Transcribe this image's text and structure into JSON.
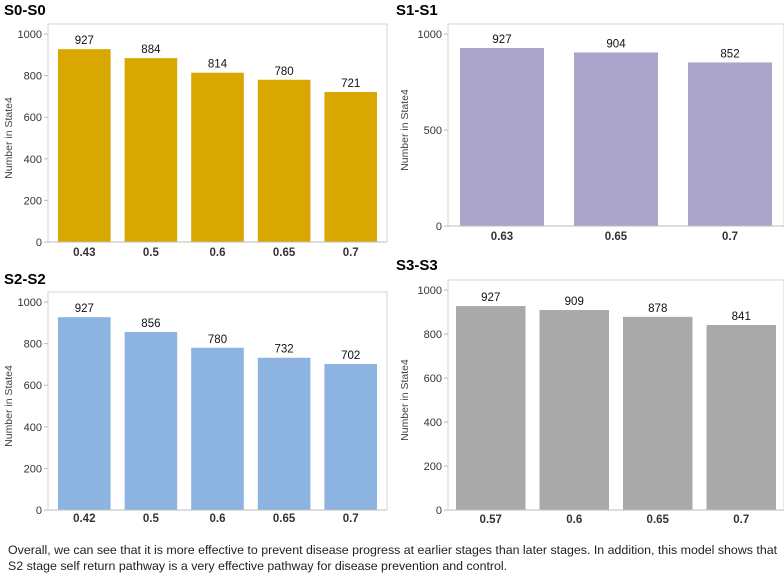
{
  "page": {
    "caption": "Overall, we can see that it is more effective to prevent disease progress at earlier stages than later stages. In addition, this model shows that S2 stage self return pathway is a very effective pathway for disease prevention and control."
  },
  "chart_data": [
    {
      "type": "bar",
      "title": "S0-S0",
      "ylabel": "Number in State4",
      "xlabel": "",
      "categories": [
        "0.43",
        "0.5",
        "0.6",
        "0.65",
        "0.7"
      ],
      "values": [
        927,
        884,
        814,
        780,
        721
      ],
      "ylim": [
        0,
        1000
      ],
      "yticks": [
        "0",
        "200",
        "400",
        "600",
        "800",
        "1000"
      ],
      "color": "#d8a700",
      "grid": false
    },
    {
      "type": "bar",
      "title": "S1-S1",
      "ylabel": "Number in State4",
      "xlabel": "",
      "categories": [
        "0.63",
        "0.65",
        "0.7"
      ],
      "values": [
        927,
        904,
        852
      ],
      "ylim": [
        0,
        1000
      ],
      "yticks": [
        "0",
        "500",
        "1000"
      ],
      "color": "#aba5cc",
      "grid": false
    },
    {
      "type": "bar",
      "title": "S2-S2",
      "ylabel": "Number in State4",
      "xlabel": "",
      "categories": [
        "0.42",
        "0.5",
        "0.6",
        "0.65",
        "0.7"
      ],
      "values": [
        927,
        856,
        780,
        732,
        702
      ],
      "ylim": [
        0,
        1000
      ],
      "yticks": [
        "0",
        "200",
        "400",
        "600",
        "800",
        "1000"
      ],
      "color": "#8db3e0",
      "grid": false
    },
    {
      "type": "bar",
      "title": "S3-S3",
      "ylabel": "Number in State4",
      "xlabel": "",
      "categories": [
        "0.57",
        "0.6",
        "0.65",
        "0.7"
      ],
      "values": [
        927,
        909,
        878,
        841
      ],
      "ylim": [
        0,
        1000
      ],
      "yticks": [
        "0",
        "200",
        "400",
        "600",
        "800",
        "1000"
      ],
      "color": "#a9a9a9",
      "grid": false
    }
  ]
}
